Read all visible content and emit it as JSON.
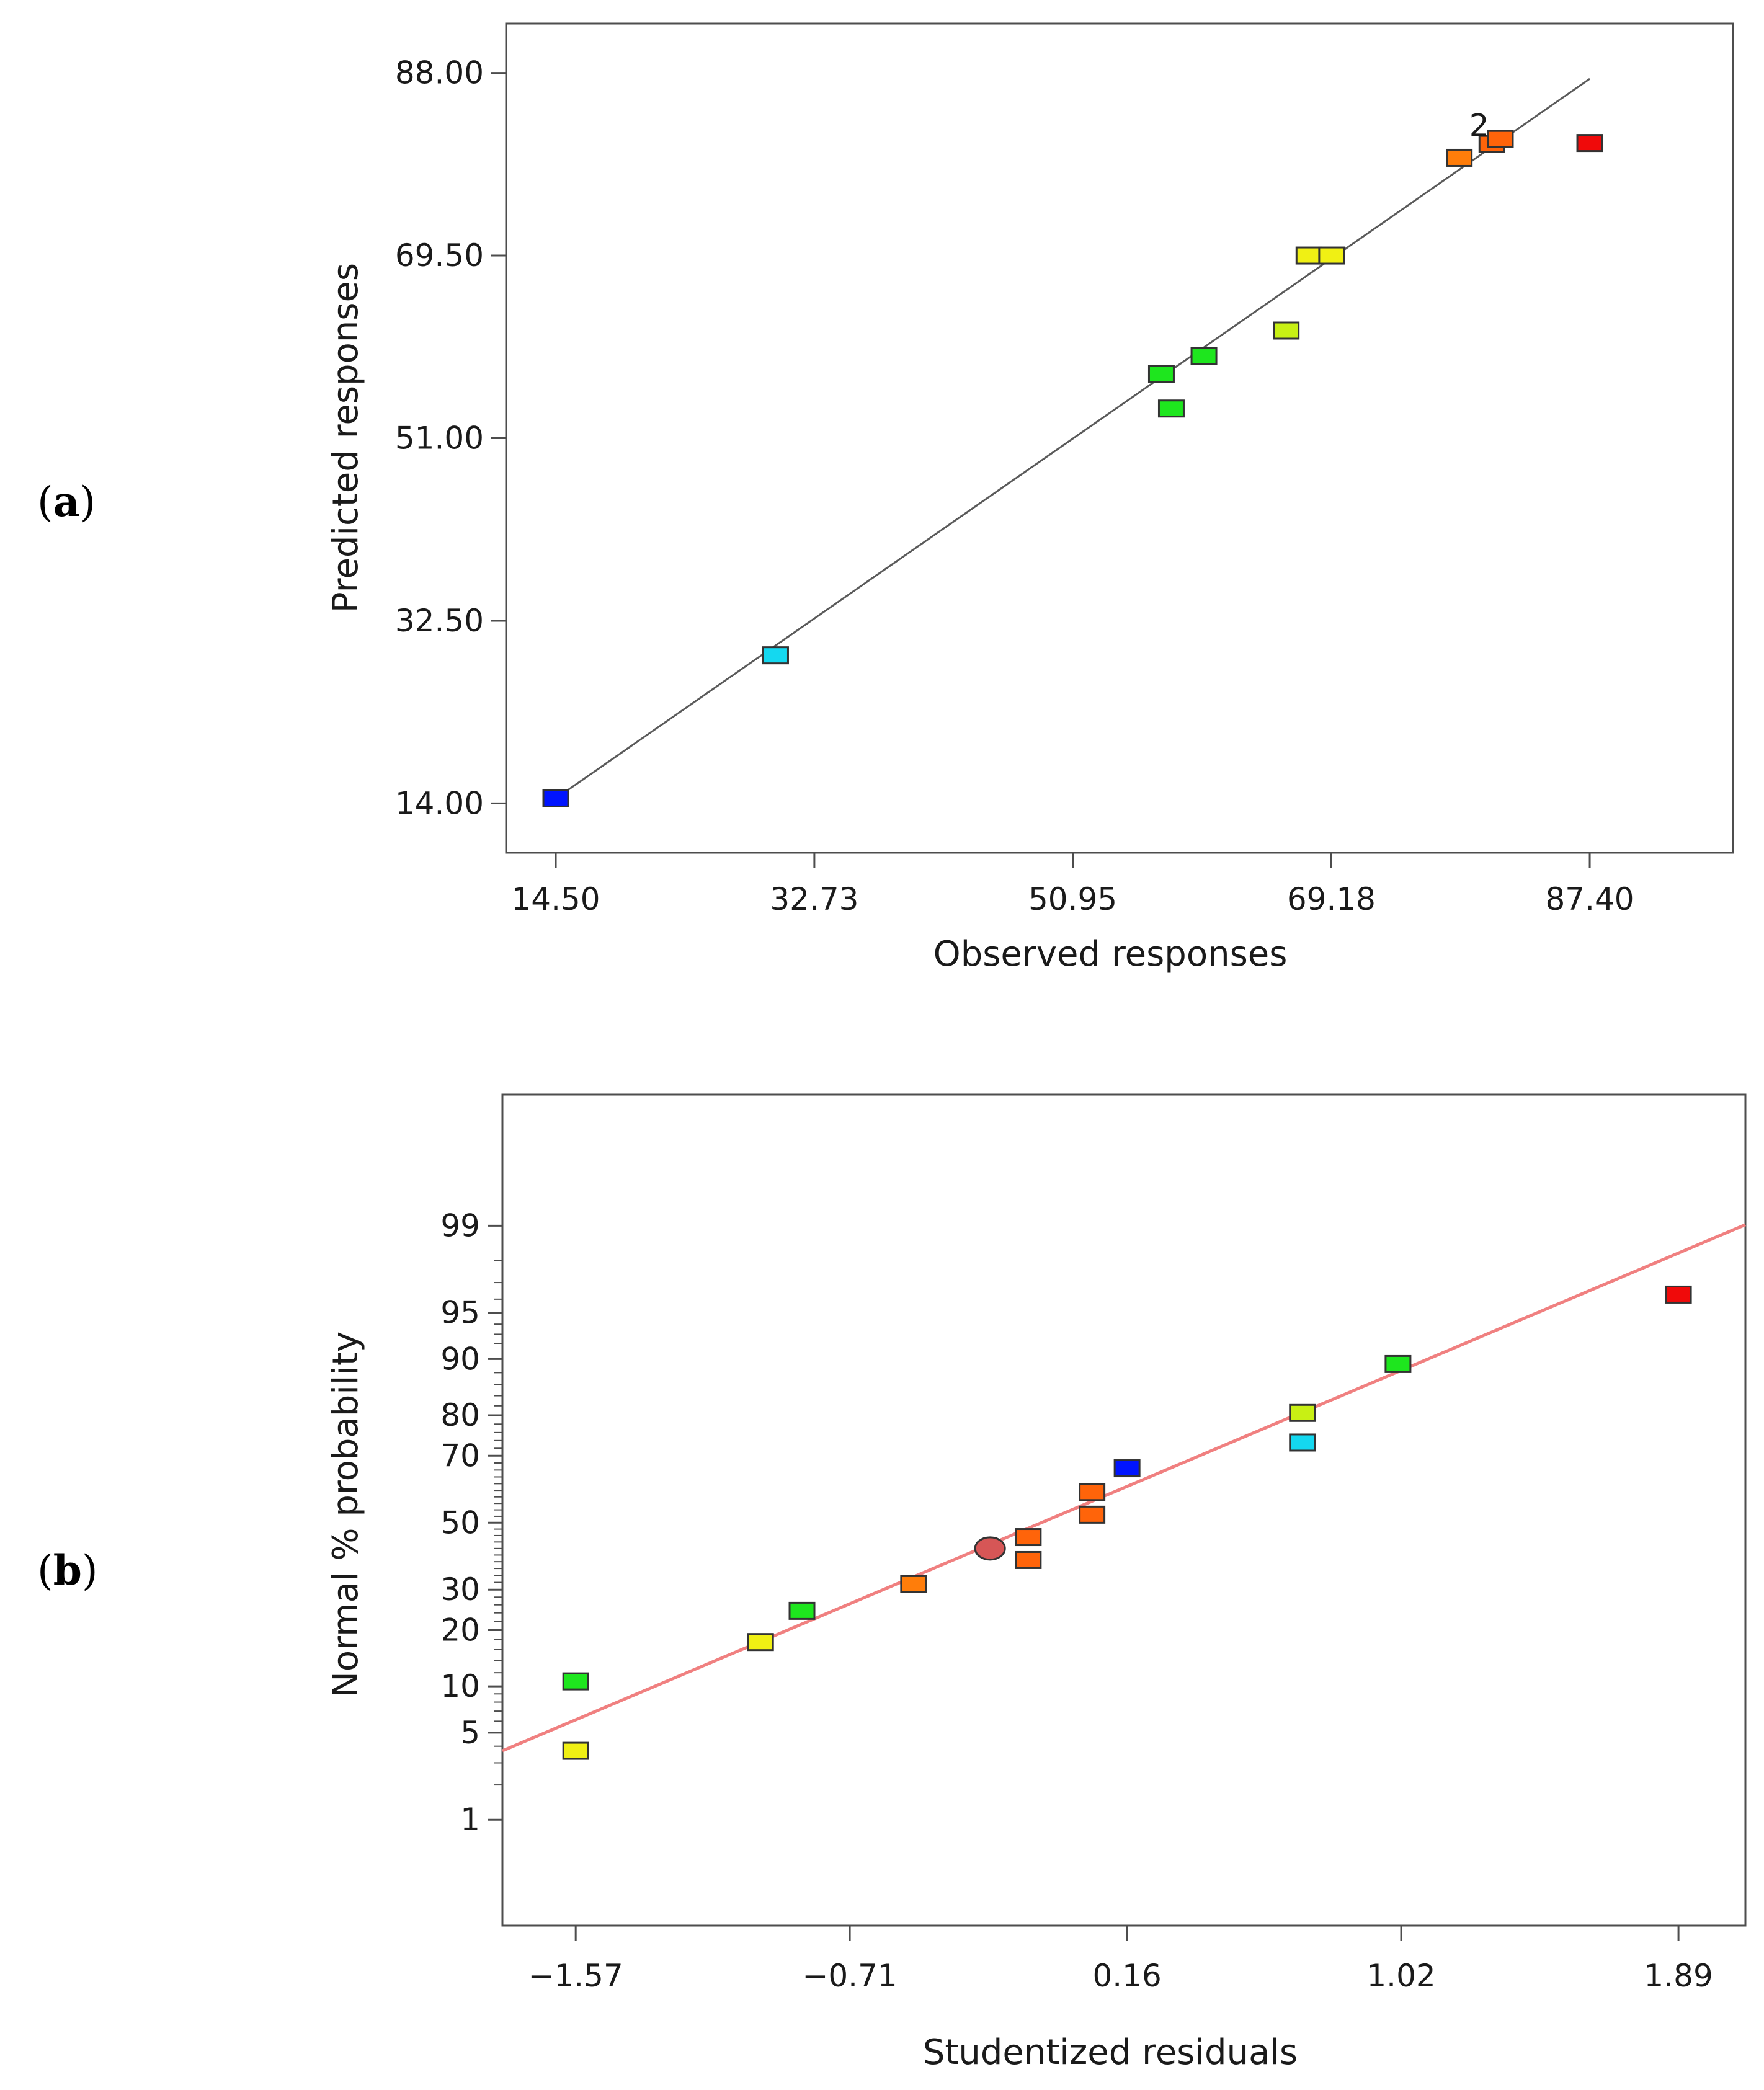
{
  "chart_data": [
    {
      "type": "scatter",
      "panel_label": "(a)",
      "panel_letter": "a",
      "xlabel": "Observed responses",
      "ylabel": "Predicted responses",
      "xlim": [
        11.0,
        97.5
      ],
      "ylim": [
        9.0,
        93.0
      ],
      "xticks": [
        14.5,
        32.73,
        50.95,
        69.18,
        87.4
      ],
      "xtick_labels": [
        "14.50",
        "32.73",
        "50.95",
        "69.18",
        "87.40"
      ],
      "yticks": [
        14.0,
        32.5,
        51.0,
        69.5,
        88.0
      ],
      "ytick_labels": [
        "14.00",
        "32.50",
        "51.00",
        "69.50",
        "88.00"
      ],
      "fit_line": {
        "from": [
          15.0,
          15.0
        ],
        "to": [
          87.4,
          87.4
        ]
      },
      "annotation": {
        "text": "2",
        "x": 79.6,
        "y": 81.6
      },
      "points": [
        {
          "x": 14.5,
          "y": 14.5,
          "color": "#0014ff"
        },
        {
          "x": 30.0,
          "y": 29.0,
          "color": "#14d8f0"
        },
        {
          "x": 57.2,
          "y": 57.5,
          "color": "#1ee61e"
        },
        {
          "x": 57.9,
          "y": 54.0,
          "color": "#1ee61e"
        },
        {
          "x": 60.2,
          "y": 59.3,
          "color": "#1ee61e"
        },
        {
          "x": 66.0,
          "y": 61.9,
          "color": "#c8f014"
        },
        {
          "x": 67.6,
          "y": 69.5,
          "color": "#f0f014"
        },
        {
          "x": 69.2,
          "y": 69.5,
          "color": "#f0f014"
        },
        {
          "x": 78.2,
          "y": 79.4,
          "color": "#ff7d0a"
        },
        {
          "x": 80.5,
          "y": 80.8,
          "color": "#ff640a"
        },
        {
          "x": 81.1,
          "y": 81.3,
          "color": "#ff640a"
        },
        {
          "x": 87.4,
          "y": 80.9,
          "color": "#f00a0a"
        }
      ]
    },
    {
      "type": "scatter",
      "panel_label": "(b)",
      "panel_letter": "b",
      "xlabel": "Studentized residuals",
      "ylabel": "Normal % probability",
      "xlim": [
        -1.8,
        2.1
      ],
      "ylim": [
        0.08,
        99.96
      ],
      "xticks": [
        -1.57,
        -0.71,
        0.16,
        1.02,
        1.89
      ],
      "xtick_labels": [
        "−1.57",
        "−0.71",
        "0.16",
        "1.02",
        "1.89"
      ],
      "yticks": [
        1,
        5,
        10,
        20,
        30,
        50,
        70,
        80,
        90,
        95,
        99
      ],
      "ytick_labels": [
        "1",
        "5",
        "10",
        "20",
        "30",
        "50",
        "70",
        "80",
        "90",
        "95",
        "99"
      ],
      "fit_line": {
        "from": [
          -1.8,
          3.7
        ],
        "to": [
          2.1,
          99.02
        ]
      },
      "points": [
        {
          "x": -1.57,
          "y": 3.7,
          "color": "#f0f014",
          "shape": "square"
        },
        {
          "x": -1.57,
          "y": 10.7,
          "color": "#1ee61e",
          "shape": "square"
        },
        {
          "x": -0.99,
          "y": 17.5,
          "color": "#f0f014",
          "shape": "square"
        },
        {
          "x": -0.86,
          "y": 24.5,
          "color": "#1ee61e",
          "shape": "square"
        },
        {
          "x": -0.51,
          "y": 31.5,
          "color": "#ff7d0a",
          "shape": "square"
        },
        {
          "x": -0.27,
          "y": 42.0,
          "color": "#d65656",
          "shape": "circle"
        },
        {
          "x": -0.15,
          "y": 38.5,
          "color": "#ff640a",
          "shape": "square"
        },
        {
          "x": -0.15,
          "y": 45.5,
          "color": "#ff640a",
          "shape": "square"
        },
        {
          "x": 0.05,
          "y": 52.5,
          "color": "#ff640a",
          "shape": "square"
        },
        {
          "x": 0.05,
          "y": 59.5,
          "color": "#ff640a",
          "shape": "square"
        },
        {
          "x": 0.16,
          "y": 66.5,
          "color": "#0014ff",
          "shape": "square"
        },
        {
          "x": 0.71,
          "y": 73.5,
          "color": "#14d8f0",
          "shape": "square"
        },
        {
          "x": 0.71,
          "y": 80.5,
          "color": "#c8f014",
          "shape": "square"
        },
        {
          "x": 1.01,
          "y": 89.3,
          "color": "#1ee61e",
          "shape": "square"
        },
        {
          "x": 1.89,
          "y": 96.3,
          "color": "#f00a0a",
          "shape": "square"
        }
      ]
    }
  ]
}
